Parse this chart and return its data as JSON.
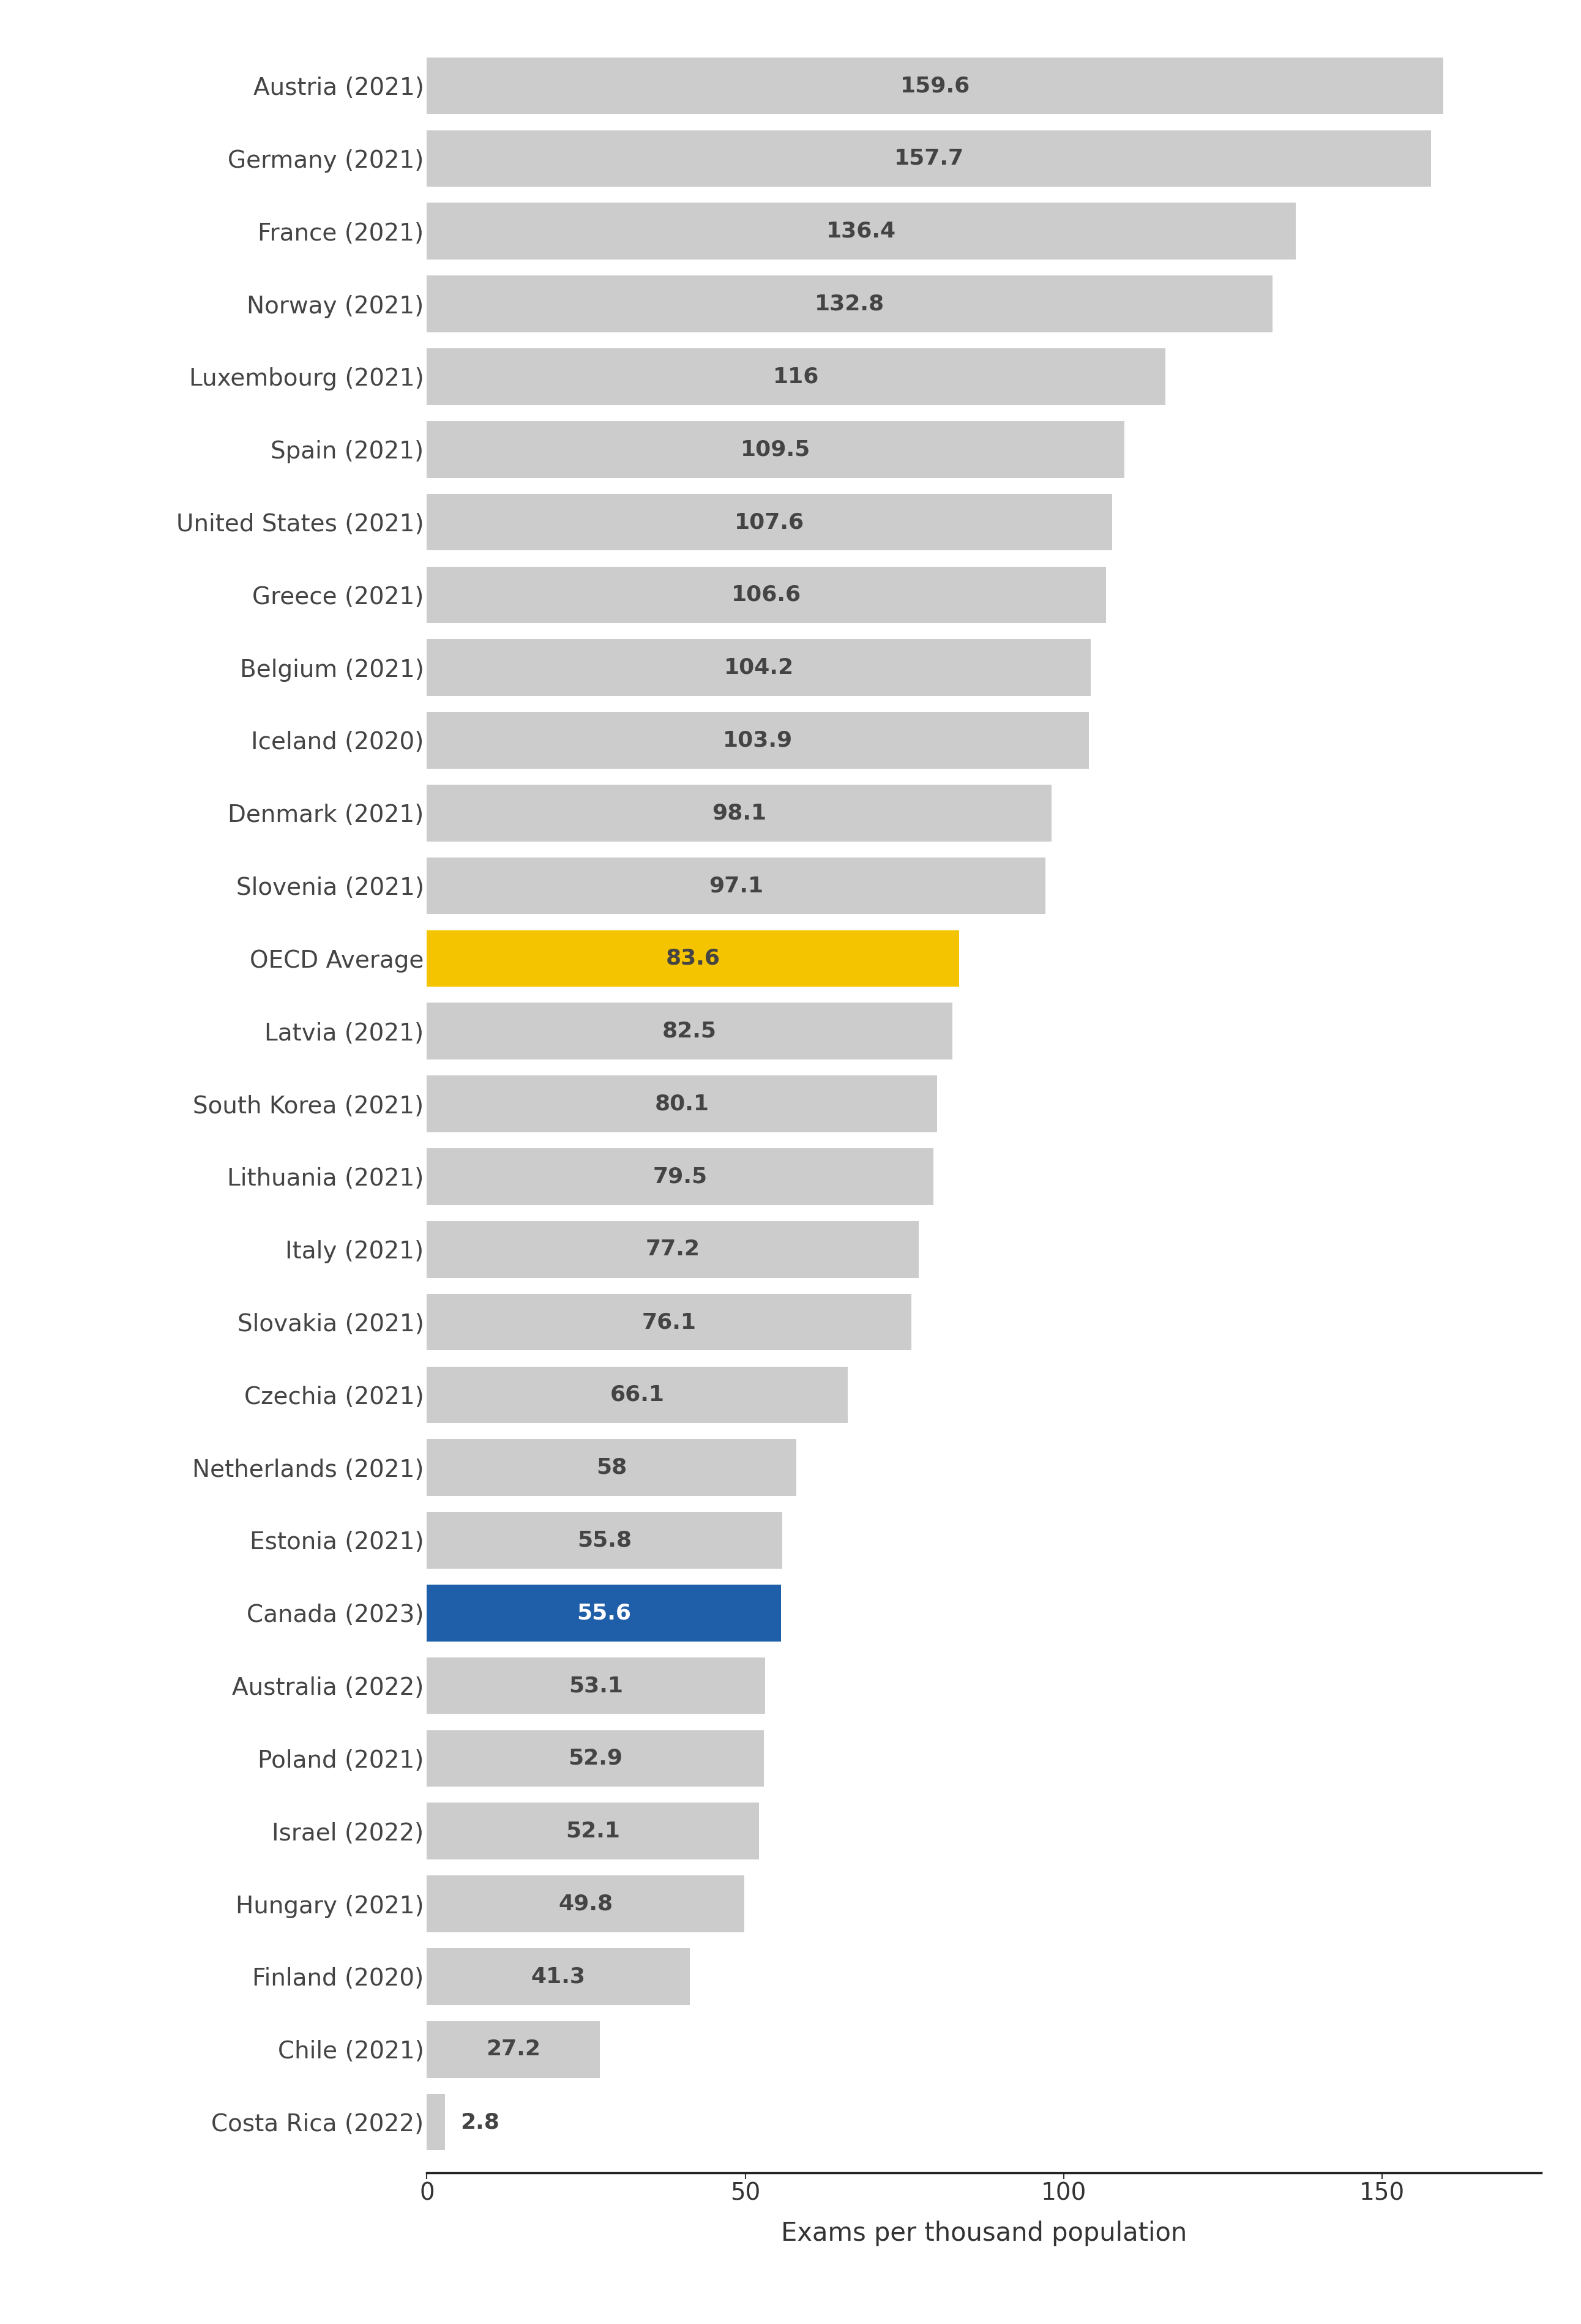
{
  "categories": [
    "Austria (2021)",
    "Germany (2021)",
    "France (2021)",
    "Norway (2021)",
    "Luxembourg (2021)",
    "Spain (2021)",
    "United States (2021)",
    "Greece (2021)",
    "Belgium (2021)",
    "Iceland (2020)",
    "Denmark (2021)",
    "Slovenia (2021)",
    "OECD Average",
    "Latvia (2021)",
    "South Korea (2021)",
    "Lithuania (2021)",
    "Italy (2021)",
    "Slovakia (2021)",
    "Czechia (2021)",
    "Netherlands (2021)",
    "Estonia (2021)",
    "Canada (2023)",
    "Australia (2022)",
    "Poland (2021)",
    "Israel (2022)",
    "Hungary (2021)",
    "Finland (2020)",
    "Chile (2021)",
    "Costa Rica (2022)"
  ],
  "values": [
    159.6,
    157.7,
    136.4,
    132.8,
    116.0,
    109.5,
    107.6,
    106.6,
    104.2,
    103.9,
    98.1,
    97.1,
    83.6,
    82.5,
    80.1,
    79.5,
    77.2,
    76.1,
    66.1,
    58.0,
    55.8,
    55.6,
    53.1,
    52.9,
    52.1,
    49.8,
    41.3,
    27.2,
    2.8
  ],
  "value_labels": [
    "159.6",
    "157.7",
    "136.4",
    "132.8",
    "116",
    "109.5",
    "107.6",
    "106.6",
    "104.2",
    "103.9",
    "98.1",
    "97.1",
    "83.6",
    "82.5",
    "80.1",
    "79.5",
    "77.2",
    "76.1",
    "66.1",
    "58",
    "55.8",
    "55.6",
    "53.1",
    "52.9",
    "52.1",
    "49.8",
    "41.3",
    "27.2",
    "2.8"
  ],
  "bar_colors": [
    "#cccccc",
    "#cccccc",
    "#cccccc",
    "#cccccc",
    "#cccccc",
    "#cccccc",
    "#cccccc",
    "#cccccc",
    "#cccccc",
    "#cccccc",
    "#cccccc",
    "#cccccc",
    "#f5c400",
    "#cccccc",
    "#cccccc",
    "#cccccc",
    "#cccccc",
    "#cccccc",
    "#cccccc",
    "#cccccc",
    "#cccccc",
    "#1f5ea8",
    "#cccccc",
    "#cccccc",
    "#cccccc",
    "#cccccc",
    "#cccccc",
    "#cccccc",
    "#cccccc"
  ],
  "label_text_colors": [
    "#444444",
    "#444444",
    "#444444",
    "#444444",
    "#444444",
    "#444444",
    "#444444",
    "#444444",
    "#444444",
    "#444444",
    "#444444",
    "#444444",
    "#444444",
    "#444444",
    "#444444",
    "#444444",
    "#444444",
    "#444444",
    "#444444",
    "#444444",
    "#444444",
    "#ffffff",
    "#444444",
    "#444444",
    "#444444",
    "#444444",
    "#444444",
    "#444444",
    "#444444"
  ],
  "xlabel": "Exams per thousand population",
  "xlim": [
    0,
    175
  ],
  "background_color": "#ffffff",
  "bar_height": 0.78,
  "ytick_fontsize": 28,
  "value_fontsize": 26,
  "xlabel_fontsize": 30,
  "xtick_fontsize": 28
}
